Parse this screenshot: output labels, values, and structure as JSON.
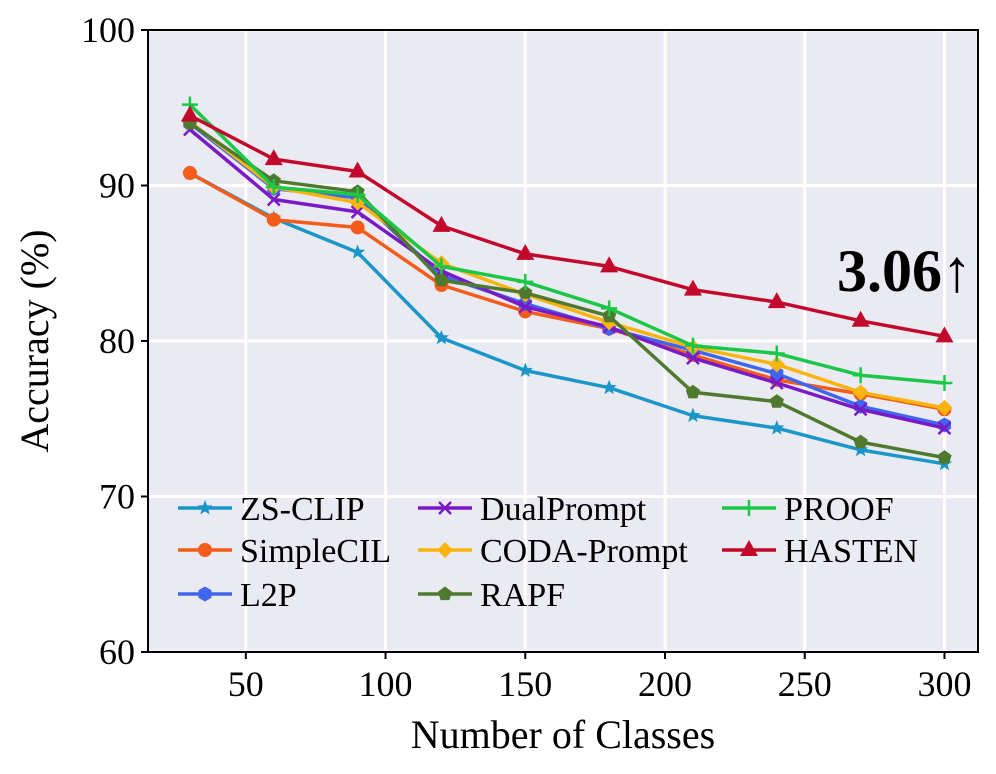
{
  "chart_data": {
    "type": "line",
    "xlabel": "Number of Classes",
    "ylabel": "Accuracy (%)",
    "xlim": [
      15,
      312
    ],
    "ylim": [
      60,
      100
    ],
    "xticks": [
      50,
      100,
      150,
      200,
      250,
      300
    ],
    "yticks": [
      60,
      70,
      80,
      90,
      100
    ],
    "grid": true,
    "legend_position": "lower-left",
    "x": [
      30,
      60,
      90,
      120,
      150,
      180,
      210,
      240,
      270,
      300
    ],
    "annotation": "3.06↑",
    "series": [
      {
        "name": "ZS-CLIP",
        "color": "#1a96c8",
        "marker": "star",
        "values": [
          90.8,
          87.9,
          85.7,
          80.2,
          78.1,
          77.0,
          75.2,
          74.4,
          73.0,
          72.1
        ]
      },
      {
        "name": "SimpleCIL",
        "color": "#f55c19",
        "marker": "circle",
        "values": [
          90.8,
          87.8,
          87.3,
          83.6,
          81.9,
          80.8,
          79.1,
          77.5,
          76.6,
          75.6
        ]
      },
      {
        "name": "L2P",
        "color": "#3f66ec",
        "marker": "hexagon",
        "values": [
          94.0,
          89.8,
          89.2,
          84.2,
          82.4,
          80.8,
          79.4,
          77.9,
          75.8,
          74.6
        ]
      },
      {
        "name": "DualPrompt",
        "color": "#7a1ac6",
        "marker": "x",
        "values": [
          93.6,
          89.1,
          88.3,
          84.5,
          82.2,
          80.9,
          78.9,
          77.3,
          75.6,
          74.4
        ]
      },
      {
        "name": "CODA-Prompt",
        "color": "#fbb40f",
        "marker": "diamond",
        "values": [
          94.1,
          89.9,
          88.9,
          85.0,
          83.0,
          81.2,
          79.6,
          78.5,
          76.7,
          75.7
        ]
      },
      {
        "name": "RAPF",
        "color": "#4f7a2e",
        "marker": "pentagon",
        "values": [
          94.0,
          90.3,
          89.6,
          83.9,
          83.1,
          81.6,
          76.7,
          76.1,
          73.5,
          72.5
        ]
      },
      {
        "name": "PROOF",
        "color": "#1cc748",
        "marker": "plus",
        "values": [
          95.2,
          89.9,
          89.4,
          84.8,
          83.8,
          82.1,
          79.7,
          79.2,
          77.8,
          77.3
        ]
      },
      {
        "name": "HASTEN",
        "color": "#c2092c",
        "marker": "triangle",
        "values": [
          94.5,
          91.7,
          90.9,
          87.4,
          85.6,
          84.8,
          83.3,
          82.5,
          81.3,
          80.3
        ]
      }
    ]
  }
}
